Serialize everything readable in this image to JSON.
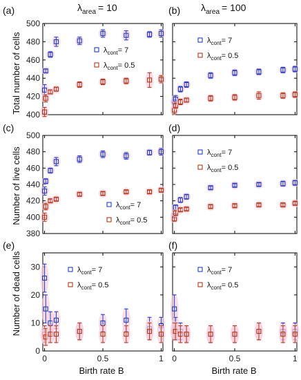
{
  "column_headers": [
    {
      "lambda": "λ",
      "sub": "area",
      "value": "= 10"
    },
    {
      "lambda": "λ",
      "sub": "area",
      "value": "= 100"
    }
  ],
  "row_ylabels": [
    "Total number of cells",
    "Number of live cells",
    "Number of dead cells"
  ],
  "xlabel": "Birth rate B",
  "colors": {
    "blue": "#1f3fbf",
    "red": "#b03a1a",
    "halo": "#f6cfe0"
  },
  "legend": {
    "blue": {
      "lambda": "λ",
      "sub": "cont",
      "value": "= 7"
    },
    "red": {
      "lambda": "λ",
      "sub": "cont",
      "value": "= 0.5"
    }
  },
  "chart_data": [
    {
      "panel": "(a)",
      "type": "scatter",
      "ylim": [
        400,
        500
      ],
      "yticks": [
        "400",
        "420",
        "440",
        "460",
        "480",
        "500"
      ],
      "xticks": [],
      "legend_pos": "right",
      "series": [
        {
          "name": "λcont = 7",
          "color": "blue",
          "points": [
            [
              0.0,
              427,
              6
            ],
            [
              0.01,
              448,
              2
            ],
            [
              0.05,
              466,
              3
            ],
            [
              0.1,
              480,
              5
            ],
            [
              0.3,
              481,
              4
            ],
            [
              0.5,
              489,
              4
            ],
            [
              0.7,
              487,
              5
            ],
            [
              0.9,
              488,
              3
            ],
            [
              1.0,
              489,
              4
            ]
          ]
        },
        {
          "name": "λcont = 0.5",
          "color": "red",
          "points": [
            [
              0.0,
              403,
              5
            ],
            [
              0.01,
              418,
              4
            ],
            [
              0.05,
              425,
              2
            ],
            [
              0.1,
              428,
              2
            ],
            [
              0.3,
              433,
              3
            ],
            [
              0.5,
              436,
              3
            ],
            [
              0.7,
              437,
              3
            ],
            [
              0.9,
              438,
              8
            ],
            [
              1.0,
              439,
              4
            ]
          ]
        }
      ]
    },
    {
      "panel": "(b)",
      "type": "scatter",
      "ylim": [
        400,
        500
      ],
      "yticks": [],
      "xticks": [],
      "legend_pos": "top-left",
      "series": [
        {
          "name": "λcont = 7",
          "color": "blue",
          "points": [
            [
              0.0,
              414,
              3
            ],
            [
              0.01,
              417,
              4
            ],
            [
              0.05,
              428,
              3
            ],
            [
              0.1,
              433,
              3
            ],
            [
              0.3,
              443,
              3
            ],
            [
              0.5,
              446,
              3
            ],
            [
              0.7,
              447,
              3
            ],
            [
              0.9,
              449,
              3
            ],
            [
              1.0,
              450,
              3
            ]
          ]
        },
        {
          "name": "λcont = 0.5",
          "color": "red",
          "points": [
            [
              0.0,
              405,
              4
            ],
            [
              0.01,
              410,
              3
            ],
            [
              0.05,
              414,
              3
            ],
            [
              0.1,
              416,
              2
            ],
            [
              0.3,
              418,
              3
            ],
            [
              0.5,
              419,
              3
            ],
            [
              0.7,
              421,
              4
            ],
            [
              0.9,
              421,
              3
            ],
            [
              1.0,
              422,
              3
            ]
          ]
        }
      ]
    },
    {
      "panel": "(c)",
      "type": "scatter",
      "ylim": [
        380,
        500
      ],
      "yticks": [
        "380",
        "400",
        "420",
        "440",
        "460",
        "480",
        "500"
      ],
      "xticks": [],
      "legend_pos": "bottom-right",
      "series": [
        {
          "name": "λcont = 7",
          "color": "blue",
          "points": [
            [
              0.0,
              432,
              5
            ],
            [
              0.01,
              444,
              3
            ],
            [
              0.05,
              457,
              3
            ],
            [
              0.1,
              468,
              5
            ],
            [
              0.3,
              471,
              4
            ],
            [
              0.5,
              477,
              4
            ],
            [
              0.7,
              475,
              4
            ],
            [
              0.9,
              479,
              3
            ],
            [
              1.0,
              480,
              4
            ]
          ]
        },
        {
          "name": "λcont = 0.5",
          "color": "red",
          "points": [
            [
              0.0,
              400,
              5
            ],
            [
              0.01,
              413,
              4
            ],
            [
              0.05,
              420,
              2
            ],
            [
              0.1,
              422,
              2
            ],
            [
              0.3,
              428,
              2
            ],
            [
              0.5,
              429,
              2
            ],
            [
              0.7,
              431,
              2
            ],
            [
              0.9,
              431,
              2
            ],
            [
              1.0,
              433,
              2
            ]
          ]
        }
      ]
    },
    {
      "panel": "(d)",
      "type": "scatter",
      "ylim": [
        380,
        500
      ],
      "yticks": [],
      "xticks": [],
      "legend_pos": "top-left",
      "series": [
        {
          "name": "λcont = 7",
          "color": "blue",
          "points": [
            [
              0.0,
              402,
              3
            ],
            [
              0.01,
              412,
              3
            ],
            [
              0.05,
              421,
              3
            ],
            [
              0.1,
              425,
              3
            ],
            [
              0.3,
              436,
              2
            ],
            [
              0.5,
              439,
              2
            ],
            [
              0.7,
              440,
              2
            ],
            [
              0.9,
              441,
              3
            ],
            [
              1.0,
              442,
              3
            ]
          ]
        },
        {
          "name": "λcont = 0.5",
          "color": "red",
          "points": [
            [
              0.0,
              398,
              3
            ],
            [
              0.01,
              405,
              3
            ],
            [
              0.05,
              409,
              2
            ],
            [
              0.1,
              410,
              2
            ],
            [
              0.3,
              413,
              2
            ],
            [
              0.5,
              414,
              2
            ],
            [
              0.7,
              415,
              2
            ],
            [
              0.9,
              415,
              2
            ],
            [
              1.0,
              417,
              2
            ]
          ]
        }
      ]
    },
    {
      "panel": "(e)",
      "type": "scatter",
      "ylim": [
        0,
        35
      ],
      "yticks": [
        "0",
        "10",
        "20",
        "30"
      ],
      "xticks": [
        "0",
        "0.5",
        "1"
      ],
      "legend_pos": "top-left",
      "series": [
        {
          "name": "λcont = 7",
          "color": "blue",
          "points": [
            [
              0.0,
              26,
              5
            ],
            [
              0.01,
              15,
              5
            ],
            [
              0.05,
              10,
              4
            ],
            [
              0.1,
              11,
              3
            ],
            [
              0.3,
              7,
              3
            ],
            [
              0.5,
              10,
              3
            ],
            [
              0.7,
              11,
              4
            ],
            [
              0.9,
              8,
              4
            ],
            [
              1.0,
              9,
              3
            ]
          ]
        },
        {
          "name": "λcont = 0.5",
          "color": "red",
          "points": [
            [
              0.0,
              6,
              3
            ],
            [
              0.01,
              5,
              3
            ],
            [
              0.05,
              6,
              3
            ],
            [
              0.1,
              6,
              3
            ],
            [
              0.3,
              7,
              3
            ],
            [
              0.5,
              6,
              3
            ],
            [
              0.7,
              6,
              3
            ],
            [
              0.9,
              7,
              3
            ],
            [
              1.0,
              6,
              3
            ]
          ]
        }
      ]
    },
    {
      "panel": "(f)",
      "type": "scatter",
      "ylim": [
        0,
        35
      ],
      "yticks": [],
      "xticks": [
        "0",
        "0.5",
        "1"
      ],
      "legend_pos": "top-left",
      "series": [
        {
          "name": "λcont = 7",
          "color": "blue",
          "points": [
            [
              0.0,
              15,
              5
            ],
            [
              0.01,
              8,
              4
            ],
            [
              0.05,
              7,
              3
            ],
            [
              0.1,
              6,
              3
            ],
            [
              0.3,
              6,
              3
            ],
            [
              0.5,
              6,
              3
            ],
            [
              0.7,
              7,
              3
            ],
            [
              0.9,
              7,
              3
            ],
            [
              1.0,
              7,
              3
            ]
          ]
        },
        {
          "name": "λcont = 0.5",
          "color": "red",
          "points": [
            [
              0.0,
              7,
              3
            ],
            [
              0.01,
              7,
              3
            ],
            [
              0.05,
              6,
              3
            ],
            [
              0.1,
              6,
              3
            ],
            [
              0.3,
              6,
              3
            ],
            [
              0.5,
              6,
              3
            ],
            [
              0.7,
              7,
              3
            ],
            [
              0.9,
              6,
              3
            ],
            [
              1.0,
              6,
              3
            ]
          ]
        }
      ]
    }
  ]
}
